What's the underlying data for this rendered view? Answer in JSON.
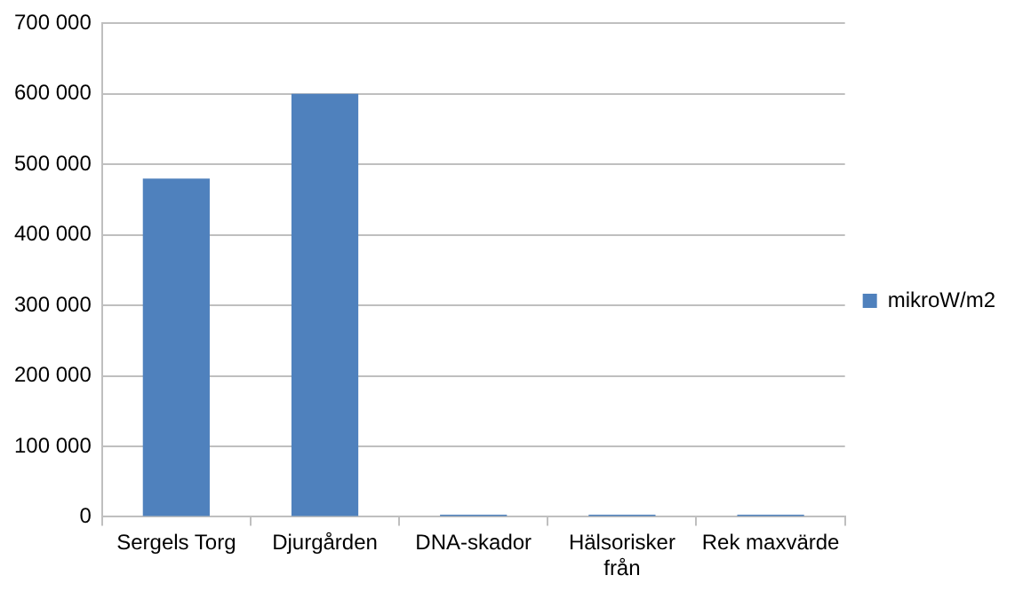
{
  "chart_data": {
    "type": "bar",
    "categories": [
      "Sergels Torg",
      "Djurgården",
      "DNA-skador",
      "Hälsorisker från",
      "Rek maxvärde"
    ],
    "series": [
      {
        "name": "mikroW/m2",
        "color": "#4f81bd",
        "values": [
          480000,
          600000,
          3000,
          3000,
          3000
        ]
      }
    ],
    "ylim": [
      0,
      700000
    ],
    "yticks": [
      {
        "value": 0,
        "label": "0"
      },
      {
        "value": 100000,
        "label": "100 000"
      },
      {
        "value": 200000,
        "label": "200 000"
      },
      {
        "value": 300000,
        "label": "300 000"
      },
      {
        "value": 400000,
        "label": "400 000"
      },
      {
        "value": 500000,
        "label": "500 000"
      },
      {
        "value": 600000,
        "label": "600 000"
      },
      {
        "value": 700000,
        "label": "700 000"
      }
    ],
    "grid": "y",
    "legend": "right"
  }
}
